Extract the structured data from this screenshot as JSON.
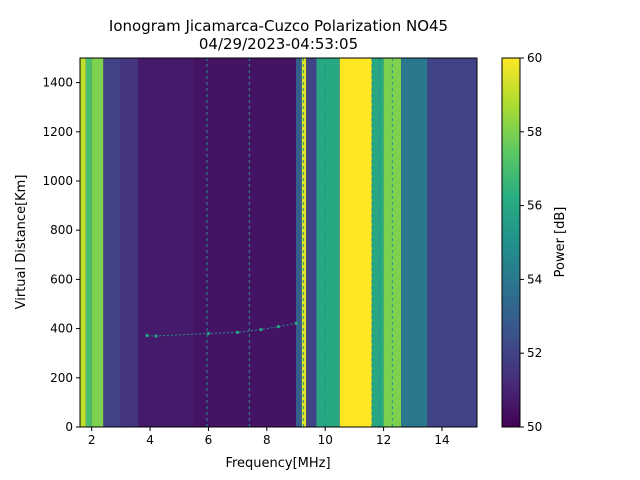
{
  "chart_data": {
    "type": "heatmap",
    "title_lines": [
      "Ionogram Jicamarca-Cuzco Polarization NO45",
      "04/29/2023-04:53:05"
    ],
    "xlabel": "Frequency[MHz]",
    "ylabel": "Virtual Distance[Km]",
    "xlim": [
      1.6,
      15.2
    ],
    "ylim": [
      0,
      1500
    ],
    "x_ticks": [
      2,
      4,
      6,
      8,
      10,
      12,
      14
    ],
    "y_ticks": [
      0,
      200,
      400,
      600,
      800,
      1000,
      1200,
      1400
    ],
    "grid": false,
    "colorbar": {
      "label": "Power [dB]",
      "colormap": "viridis",
      "range": [
        50,
        60
      ],
      "ticks": [
        50,
        52,
        54,
        56,
        58,
        60
      ]
    },
    "frequency_bands_mhz": [
      {
        "x0": 1.6,
        "x1": 1.8,
        "power_db": 59
      },
      {
        "x0": 1.8,
        "x1": 2.0,
        "power_db": 57
      },
      {
        "x0": 2.0,
        "x1": 2.4,
        "power_db": 58
      },
      {
        "x0": 2.4,
        "x1": 3.0,
        "power_db": 52
      },
      {
        "x0": 3.0,
        "x1": 3.6,
        "power_db": 51.5
      },
      {
        "x0": 3.6,
        "x1": 5.5,
        "power_db": 50.7
      },
      {
        "x0": 5.5,
        "x1": 9.0,
        "power_db": 50.5
      },
      {
        "x0": 9.0,
        "x1": 9.2,
        "power_db": 53
      },
      {
        "x0": 9.2,
        "x1": 9.35,
        "power_db": 59.5
      },
      {
        "x0": 9.35,
        "x1": 9.7,
        "power_db": 52
      },
      {
        "x0": 9.7,
        "x1": 10.5,
        "power_db": 56
      },
      {
        "x0": 10.5,
        "x1": 11.6,
        "power_db": 60
      },
      {
        "x0": 11.6,
        "x1": 12.0,
        "power_db": 56
      },
      {
        "x0": 12.0,
        "x1": 12.6,
        "power_db": 58
      },
      {
        "x0": 12.6,
        "x1": 13.5,
        "power_db": 54
      },
      {
        "x0": 13.5,
        "x1": 15.2,
        "power_db": 52
      }
    ],
    "vertical_lines_mhz": [
      5.95,
      7.4,
      9.25,
      10.0,
      11.6,
      11.85,
      12.3
    ],
    "echo_trace": [
      {
        "x": 3.9,
        "y": 372
      },
      {
        "x": 4.2,
        "y": 370
      },
      {
        "x": 6.0,
        "y": 380
      },
      {
        "x": 7.0,
        "y": 385
      },
      {
        "x": 7.8,
        "y": 396
      },
      {
        "x": 8.4,
        "y": 408
      },
      {
        "x": 9.0,
        "y": 422
      }
    ]
  }
}
